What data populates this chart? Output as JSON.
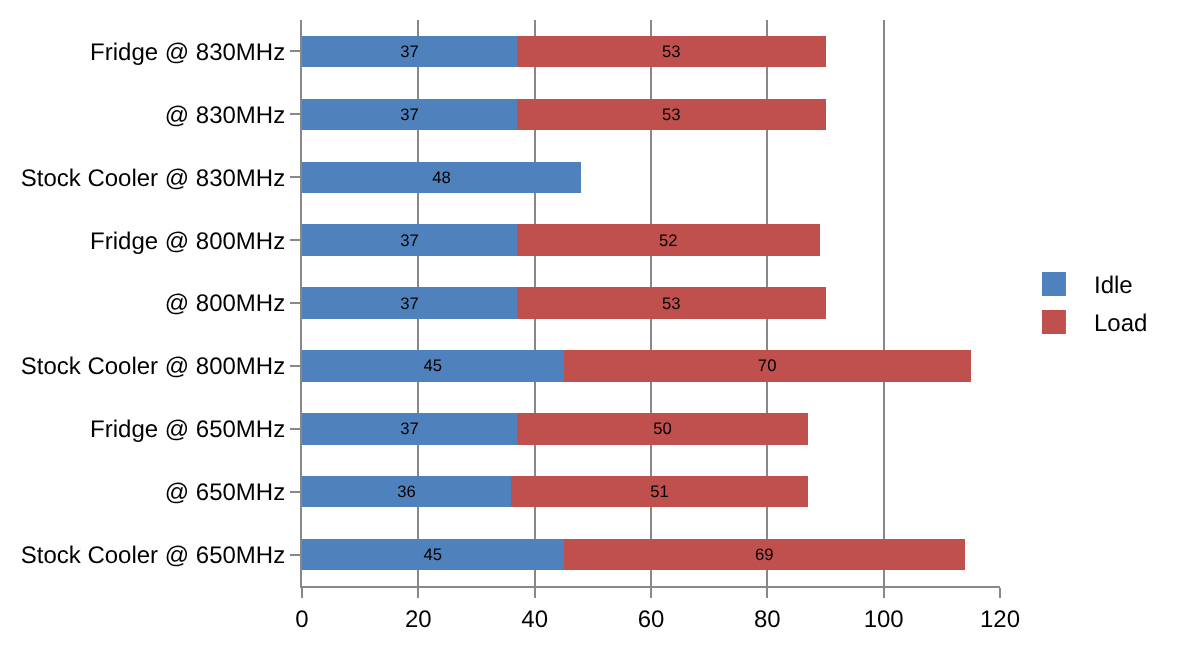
{
  "chart_data": {
    "type": "bar",
    "orientation": "horizontal",
    "stacked": true,
    "data_labels": true,
    "categories": [
      "Fridge @ 830MHz",
      "@ 830MHz",
      "Stock Cooler @ 830MHz",
      "Fridge @ 800MHz",
      "@ 800MHz",
      "Stock Cooler @ 800MHz",
      "Fridge @ 650MHz",
      "@ 650MHz",
      "Stock Cooler @ 650MHz"
    ],
    "series": [
      {
        "name": "Idle",
        "color": "#4f81bd",
        "values": [
          37,
          37,
          48,
          37,
          37,
          45,
          37,
          36,
          45
        ]
      },
      {
        "name": "Load",
        "color": "#c0504d",
        "values": [
          53,
          53,
          null,
          52,
          53,
          70,
          50,
          51,
          69
        ]
      }
    ],
    "xlim": [
      0,
      120
    ],
    "xticks": [
      0,
      20,
      40,
      60,
      80,
      100,
      120
    ],
    "grid": "x",
    "legend": "right"
  }
}
